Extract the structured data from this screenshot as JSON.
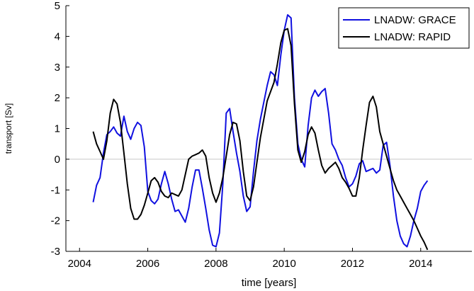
{
  "chart_data": {
    "type": "line",
    "xlabel": "time [years]",
    "ylabel": "transport [Sv]",
    "xlim": [
      2003.6,
      2015.5
    ],
    "ylim": [
      -3,
      5
    ],
    "xticks": [
      2004,
      2006,
      2008,
      2010,
      2012,
      2014
    ],
    "yticks": [
      -3,
      -2,
      -1,
      0,
      1,
      2,
      3,
      4,
      5
    ],
    "zero_line": true,
    "grid": false,
    "legend_position": "top-right",
    "series": [
      {
        "name": "LNADW: GRACE",
        "color": "#1010e0",
        "x": [
          2004.4,
          2004.5,
          2004.6,
          2004.7,
          2004.8,
          2004.9,
          2005.0,
          2005.1,
          2005.2,
          2005.3,
          2005.4,
          2005.5,
          2005.6,
          2005.7,
          2005.8,
          2005.9,
          2006.0,
          2006.1,
          2006.2,
          2006.3,
          2006.4,
          2006.5,
          2006.6,
          2006.7,
          2006.8,
          2006.9,
          2007.0,
          2007.1,
          2007.2,
          2007.3,
          2007.4,
          2007.5,
          2007.6,
          2007.7,
          2007.8,
          2007.9,
          2008.0,
          2008.1,
          2008.2,
          2008.3,
          2008.4,
          2008.5,
          2008.6,
          2008.7,
          2008.8,
          2008.9,
          2009.0,
          2009.1,
          2009.2,
          2009.3,
          2009.4,
          2009.5,
          2009.6,
          2009.7,
          2009.8,
          2009.9,
          2010.0,
          2010.1,
          2010.2,
          2010.3,
          2010.4,
          2010.5,
          2010.6,
          2010.7,
          2010.8,
          2010.9,
          2011.0,
          2011.1,
          2011.2,
          2011.3,
          2011.4,
          2011.5,
          2011.6,
          2011.7,
          2011.8,
          2011.9,
          2012.0,
          2012.1,
          2012.2,
          2012.3,
          2012.4,
          2012.5,
          2012.6,
          2012.7,
          2012.8,
          2012.9,
          2013.0,
          2013.1,
          2013.2,
          2013.3,
          2013.4,
          2013.5,
          2013.6,
          2013.7,
          2013.8,
          2013.9,
          2014.0,
          2014.1,
          2014.2
        ],
        "y": [
          -1.4,
          -0.85,
          -0.6,
          0.2,
          0.8,
          0.9,
          1.05,
          0.85,
          0.75,
          1.4,
          0.9,
          0.65,
          1.0,
          1.2,
          1.1,
          0.4,
          -1.05,
          -1.35,
          -1.45,
          -1.3,
          -0.8,
          -0.4,
          -0.8,
          -1.3,
          -1.7,
          -1.65,
          -1.85,
          -2.05,
          -1.6,
          -0.9,
          -0.35,
          -0.35,
          -0.95,
          -1.6,
          -2.3,
          -2.8,
          -2.85,
          -2.4,
          -0.8,
          1.5,
          1.65,
          0.9,
          0.2,
          -0.4,
          -1.2,
          -1.7,
          -1.55,
          -0.4,
          0.6,
          1.3,
          1.85,
          2.4,
          2.85,
          2.75,
          2.4,
          3.4,
          4.2,
          4.7,
          4.6,
          2.0,
          0.5,
          0.0,
          -0.25,
          1.1,
          2.0,
          2.25,
          2.05,
          2.2,
          2.3,
          1.5,
          0.5,
          0.3,
          0.0,
          -0.2,
          -0.6,
          -0.9,
          -0.8,
          -0.55,
          -0.15,
          -0.05,
          -0.4,
          -0.35,
          -0.3,
          -0.45,
          -0.35,
          0.45,
          0.55,
          -0.2,
          -1.2,
          -2.0,
          -2.5,
          -2.75,
          -2.85,
          -2.5,
          -2.0,
          -1.6,
          -1.05,
          -0.85,
          -0.7
        ]
      },
      {
        "name": "LNADW: RAPID",
        "color": "#000000",
        "x": [
          2004.4,
          2004.5,
          2004.6,
          2004.7,
          2004.8,
          2004.9,
          2005.0,
          2005.1,
          2005.2,
          2005.3,
          2005.4,
          2005.5,
          2005.6,
          2005.7,
          2005.8,
          2005.9,
          2006.0,
          2006.1,
          2006.2,
          2006.3,
          2006.4,
          2006.5,
          2006.6,
          2006.7,
          2006.8,
          2006.9,
          2007.0,
          2007.1,
          2007.2,
          2007.3,
          2007.4,
          2007.5,
          2007.6,
          2007.7,
          2007.8,
          2007.9,
          2008.0,
          2008.1,
          2008.2,
          2008.3,
          2008.4,
          2008.5,
          2008.6,
          2008.7,
          2008.8,
          2008.9,
          2009.0,
          2009.1,
          2009.2,
          2009.3,
          2009.4,
          2009.5,
          2009.6,
          2009.7,
          2009.8,
          2009.9,
          2010.0,
          2010.1,
          2010.2,
          2010.3,
          2010.4,
          2010.5,
          2010.6,
          2010.7,
          2010.8,
          2010.9,
          2011.0,
          2011.1,
          2011.2,
          2011.3,
          2011.4,
          2011.5,
          2011.6,
          2011.7,
          2011.8,
          2011.9,
          2012.0,
          2012.1,
          2012.2,
          2012.3,
          2012.4,
          2012.5,
          2012.6,
          2012.7,
          2012.8,
          2012.9,
          2013.0,
          2013.1,
          2013.2,
          2013.3,
          2013.4,
          2013.5,
          2013.6,
          2013.7,
          2013.8,
          2013.9,
          2014.0,
          2014.1,
          2014.2
        ],
        "y": [
          0.9,
          0.5,
          0.25,
          0.0,
          0.6,
          1.5,
          1.95,
          1.8,
          1.2,
          0.2,
          -0.8,
          -1.6,
          -1.95,
          -1.95,
          -1.8,
          -1.5,
          -1.1,
          -0.7,
          -0.6,
          -0.75,
          -1.05,
          -1.2,
          -1.25,
          -1.1,
          -1.15,
          -1.2,
          -1.0,
          -0.5,
          0.0,
          0.1,
          0.15,
          0.2,
          0.3,
          0.1,
          -0.6,
          -1.1,
          -1.4,
          -1.1,
          -0.6,
          0.1,
          0.8,
          1.2,
          1.15,
          0.6,
          -0.4,
          -1.2,
          -1.35,
          -0.9,
          -0.1,
          0.7,
          1.3,
          1.9,
          2.2,
          2.5,
          3.1,
          3.8,
          4.2,
          4.25,
          3.7,
          1.8,
          0.3,
          -0.1,
          0.25,
          0.8,
          1.05,
          0.85,
          0.3,
          -0.2,
          -0.45,
          -0.3,
          -0.2,
          -0.1,
          -0.3,
          -0.6,
          -0.75,
          -0.95,
          -1.2,
          -1.2,
          -0.6,
          0.3,
          1.1,
          1.85,
          2.05,
          1.7,
          0.9,
          0.5,
          0.1,
          -0.3,
          -0.7,
          -1.0,
          -1.2,
          -1.4,
          -1.6,
          -1.8,
          -2.0,
          -2.25,
          -2.5,
          -2.7,
          -2.95
        ]
      }
    ]
  }
}
